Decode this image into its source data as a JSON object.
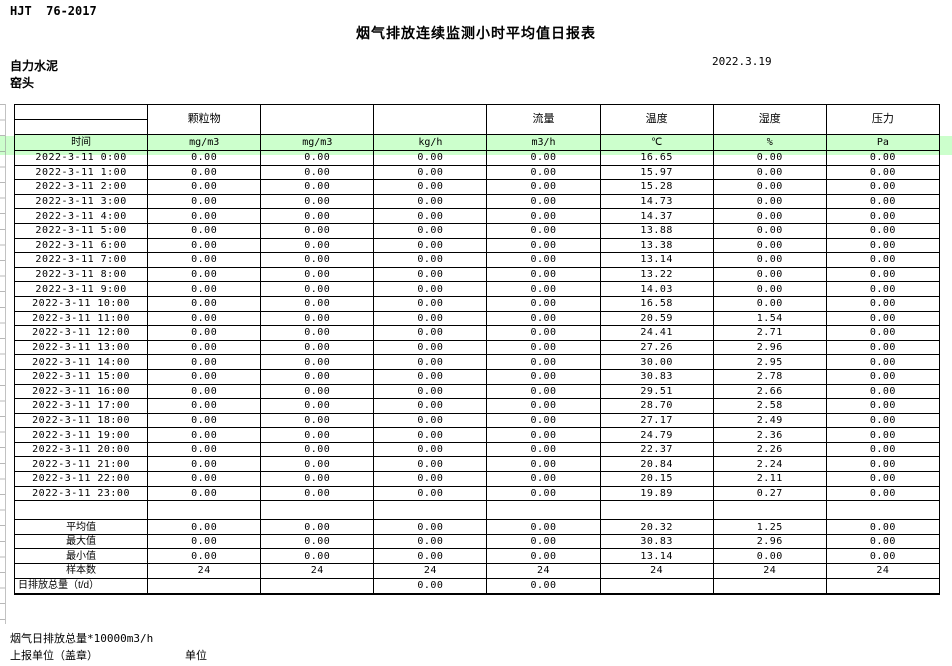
{
  "page": {
    "standard_code": "HJT  76-2017",
    "title": "烟气排放连续监测小时平均值日报表",
    "report_date": "2022.3.19",
    "company_name": "自力水泥",
    "monitoring_point": "窑头"
  },
  "table": {
    "group_headers": [
      "",
      "颗粒物",
      "",
      "",
      "流量",
      "温度",
      "湿度",
      "压力"
    ],
    "unit_headers": [
      "时间",
      "mg/m3",
      "mg/m3",
      "kg/h",
      "m3/h",
      "℃",
      "%",
      "Pa"
    ],
    "rows": [
      {
        "time": "2022-3-11 0:00",
        "values": [
          "0.00",
          "0.00",
          "0.00",
          "0.00",
          "16.65",
          "0.00",
          "0.00"
        ]
      },
      {
        "time": "2022-3-11 1:00",
        "values": [
          "0.00",
          "0.00",
          "0.00",
          "0.00",
          "15.97",
          "0.00",
          "0.00"
        ]
      },
      {
        "time": "2022-3-11 2:00",
        "values": [
          "0.00",
          "0.00",
          "0.00",
          "0.00",
          "15.28",
          "0.00",
          "0.00"
        ]
      },
      {
        "time": "2022-3-11 3:00",
        "values": [
          "0.00",
          "0.00",
          "0.00",
          "0.00",
          "14.73",
          "0.00",
          "0.00"
        ]
      },
      {
        "time": "2022-3-11 4:00",
        "values": [
          "0.00",
          "0.00",
          "0.00",
          "0.00",
          "14.37",
          "0.00",
          "0.00"
        ]
      },
      {
        "time": "2022-3-11 5:00",
        "values": [
          "0.00",
          "0.00",
          "0.00",
          "0.00",
          "13.88",
          "0.00",
          "0.00"
        ]
      },
      {
        "time": "2022-3-11 6:00",
        "values": [
          "0.00",
          "0.00",
          "0.00",
          "0.00",
          "13.38",
          "0.00",
          "0.00"
        ]
      },
      {
        "time": "2022-3-11 7:00",
        "values": [
          "0.00",
          "0.00",
          "0.00",
          "0.00",
          "13.14",
          "0.00",
          "0.00"
        ]
      },
      {
        "time": "2022-3-11 8:00",
        "values": [
          "0.00",
          "0.00",
          "0.00",
          "0.00",
          "13.22",
          "0.00",
          "0.00"
        ]
      },
      {
        "time": "2022-3-11 9:00",
        "values": [
          "0.00",
          "0.00",
          "0.00",
          "0.00",
          "14.03",
          "0.00",
          "0.00"
        ]
      },
      {
        "time": "2022-3-11 10:00",
        "values": [
          "0.00",
          "0.00",
          "0.00",
          "0.00",
          "16.58",
          "0.00",
          "0.00"
        ]
      },
      {
        "time": "2022-3-11 11:00",
        "values": [
          "0.00",
          "0.00",
          "0.00",
          "0.00",
          "20.59",
          "1.54",
          "0.00"
        ]
      },
      {
        "time": "2022-3-11 12:00",
        "values": [
          "0.00",
          "0.00",
          "0.00",
          "0.00",
          "24.41",
          "2.71",
          "0.00"
        ]
      },
      {
        "time": "2022-3-11 13:00",
        "values": [
          "0.00",
          "0.00",
          "0.00",
          "0.00",
          "27.26",
          "2.96",
          "0.00"
        ]
      },
      {
        "time": "2022-3-11 14:00",
        "values": [
          "0.00",
          "0.00",
          "0.00",
          "0.00",
          "30.00",
          "2.95",
          "0.00"
        ]
      },
      {
        "time": "2022-3-11 15:00",
        "values": [
          "0.00",
          "0.00",
          "0.00",
          "0.00",
          "30.83",
          "2.78",
          "0.00"
        ]
      },
      {
        "time": "2022-3-11 16:00",
        "values": [
          "0.00",
          "0.00",
          "0.00",
          "0.00",
          "29.51",
          "2.66",
          "0.00"
        ]
      },
      {
        "time": "2022-3-11 17:00",
        "values": [
          "0.00",
          "0.00",
          "0.00",
          "0.00",
          "28.70",
          "2.58",
          "0.00"
        ]
      },
      {
        "time": "2022-3-11 18:00",
        "values": [
          "0.00",
          "0.00",
          "0.00",
          "0.00",
          "27.17",
          "2.49",
          "0.00"
        ]
      },
      {
        "time": "2022-3-11 19:00",
        "values": [
          "0.00",
          "0.00",
          "0.00",
          "0.00",
          "24.79",
          "2.36",
          "0.00"
        ]
      },
      {
        "time": "2022-3-11 20:00",
        "values": [
          "0.00",
          "0.00",
          "0.00",
          "0.00",
          "22.37",
          "2.26",
          "0.00"
        ]
      },
      {
        "time": "2022-3-11 21:00",
        "values": [
          "0.00",
          "0.00",
          "0.00",
          "0.00",
          "20.84",
          "2.24",
          "0.00"
        ]
      },
      {
        "time": "2022-3-11 22:00",
        "values": [
          "0.00",
          "0.00",
          "0.00",
          "0.00",
          "20.15",
          "2.11",
          "0.00"
        ]
      },
      {
        "time": "2022-3-11 23:00",
        "values": [
          "0.00",
          "0.00",
          "0.00",
          "0.00",
          "19.89",
          "0.27",
          "0.00"
        ]
      }
    ],
    "summary_rows": [
      {
        "label": "平均值",
        "values": [
          "0.00",
          "0.00",
          "0.00",
          "0.00",
          "20.32",
          "1.25",
          "0.00"
        ]
      },
      {
        "label": "最大值",
        "values": [
          "0.00",
          "0.00",
          "0.00",
          "0.00",
          "30.83",
          "2.96",
          "0.00"
        ]
      },
      {
        "label": "最小值",
        "values": [
          "0.00",
          "0.00",
          "0.00",
          "0.00",
          "13.14",
          "0.00",
          "0.00"
        ]
      },
      {
        "label": "样本数",
        "values": [
          "24",
          "24",
          "24",
          "24",
          "24",
          "24",
          "24"
        ]
      },
      {
        "label": "日排放总量（t/d）",
        "values": [
          "",
          "",
          "0.00",
          "0.00",
          "",
          "",
          ""
        ],
        "label_align": "left"
      }
    ]
  },
  "footer": {
    "note": "烟气日排放总量*10000m3/h",
    "reporting_unit_label": "上报单位（盖章）",
    "unit_label": "单位"
  },
  "colors": {
    "header_row_green": "#ccffcc",
    "border_black": "#000000"
  }
}
